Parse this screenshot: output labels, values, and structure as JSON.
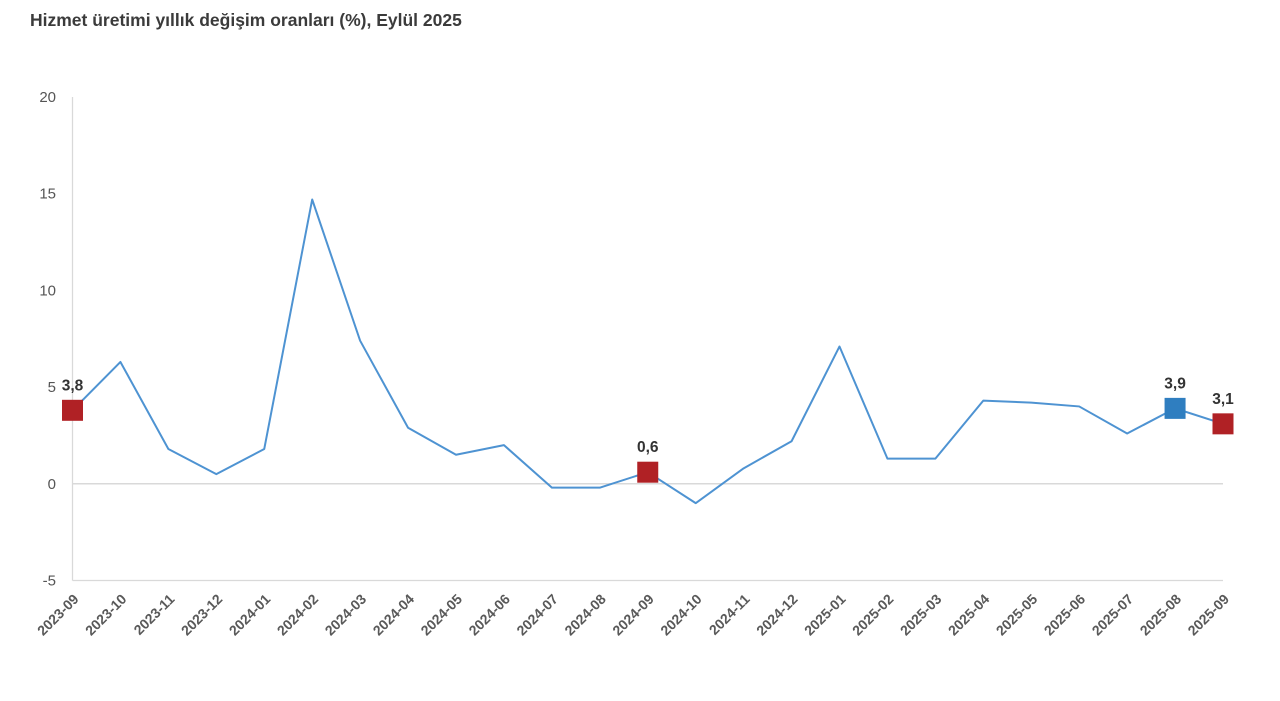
{
  "chart_data": {
    "type": "line",
    "title": "Hizmet üretimi yıllık değişim oranları (%), Eylül 2025",
    "categories": [
      "2023-09",
      "2023-10",
      "2023-11",
      "2023-12",
      "2024-01",
      "2024-02",
      "2024-03",
      "2024-04",
      "2024-05",
      "2024-06",
      "2024-07",
      "2024-08",
      "2024-09",
      "2024-10",
      "2024-11",
      "2024-12",
      "2025-01",
      "2025-02",
      "2025-03",
      "2025-04",
      "2025-05",
      "2025-06",
      "2025-07",
      "2025-08",
      "2025-09"
    ],
    "values": [
      3.8,
      6.3,
      1.8,
      0.5,
      1.8,
      14.7,
      7.4,
      2.9,
      1.5,
      2.0,
      -0.2,
      -0.2,
      0.6,
      -1.0,
      0.8,
      2.2,
      7.1,
      1.3,
      1.3,
      4.3,
      4.2,
      4.0,
      2.6,
      3.9,
      3.1
    ],
    "ylim": [
      -5,
      20
    ],
    "yticks": [
      20,
      15,
      10,
      5,
      0,
      -5
    ],
    "xlabel": "",
    "ylabel": "",
    "grid": "zero-and-bottom-lines-only",
    "legend": "none",
    "line_color": "#4e93d2",
    "grid_color": "#d9d9d9",
    "highlights": [
      {
        "index": 0,
        "category": "2023-09",
        "label": "3,8",
        "color": "#b02125"
      },
      {
        "index": 12,
        "category": "2024-09",
        "label": "0,6",
        "color": "#b02125"
      },
      {
        "index": 23,
        "category": "2025-08",
        "label": "3,9",
        "color": "#2f7ec0"
      },
      {
        "index": 24,
        "category": "2025-09",
        "label": "3,1",
        "color": "#b02125"
      }
    ]
  }
}
